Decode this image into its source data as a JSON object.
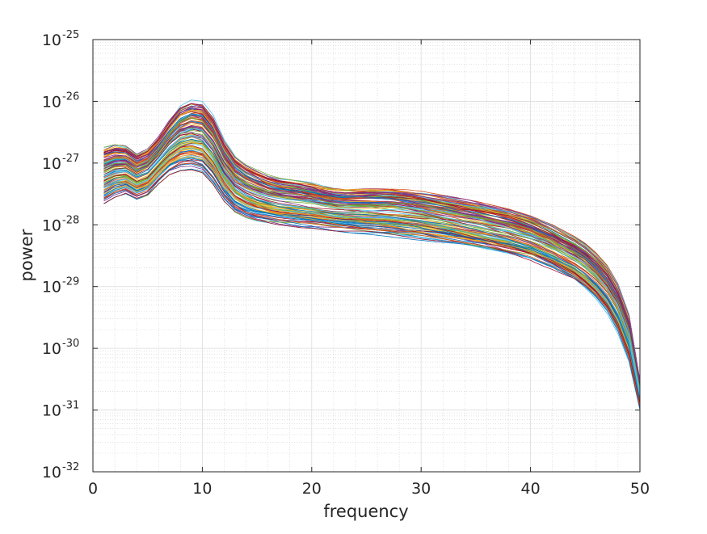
{
  "chart_data": {
    "type": "line",
    "title": "",
    "xlabel": "frequency",
    "ylabel": "power",
    "xlim": [
      0,
      50
    ],
    "ylim": [
      1e-32,
      1e-25
    ],
    "yscale": "log",
    "grid": true,
    "minor_grid": true,
    "legend": "none",
    "x_ticks": [
      {
        "value": 0,
        "label": "0"
      },
      {
        "value": 10,
        "label": "10"
      },
      {
        "value": 20,
        "label": "20"
      },
      {
        "value": 30,
        "label": "30"
      },
      {
        "value": 40,
        "label": "40"
      },
      {
        "value": 50,
        "label": "50"
      }
    ],
    "y_ticks": [
      {
        "value": 1e-25,
        "base": "10",
        "exp": "-25"
      },
      {
        "value": 1e-26,
        "base": "10",
        "exp": "-26"
      },
      {
        "value": 1e-27,
        "base": "10",
        "exp": "-27"
      },
      {
        "value": 1e-28,
        "base": "10",
        "exp": "-28"
      },
      {
        "value": 1e-29,
        "base": "10",
        "exp": "-29"
      },
      {
        "value": 1e-30,
        "base": "10",
        "exp": "-30"
      },
      {
        "value": 1e-31,
        "base": "10",
        "exp": "-31"
      },
      {
        "value": 1e-32,
        "base": "10",
        "exp": "-32"
      }
    ],
    "series_count": 120,
    "series_colors": [
      "#0072bd",
      "#d95319",
      "#edb120",
      "#7e2f8e",
      "#77ac30",
      "#4dbeee",
      "#a2142f"
    ],
    "envelope": {
      "x": [
        1,
        2,
        3,
        4,
        5,
        6,
        7,
        8,
        9,
        10,
        11,
        12,
        13,
        14,
        15,
        16,
        17,
        18,
        19,
        20,
        21,
        22,
        23,
        25,
        27,
        30,
        33,
        35,
        38,
        40,
        42,
        44,
        45,
        46,
        47,
        48,
        49,
        50
      ],
      "upper": [
        1.8e-27,
        2e-27,
        1.9e-27,
        1.4e-27,
        1.7e-27,
        2.7e-27,
        5e-27,
        8.5e-27,
        1.05e-26,
        1e-26,
        6e-27,
        2.4e-27,
        1.3e-27,
        9.5e-28,
        7.8e-28,
        6.5e-28,
        5.8e-28,
        5.5e-28,
        5.2e-28,
        4.8e-28,
        4.3e-28,
        4e-28,
        3.9e-28,
        3.95e-28,
        4e-28,
        3.5e-28,
        2.8e-28,
        2.4e-28,
        1.8e-28,
        1.4e-28,
        1e-28,
        6.5e-29,
        5e-29,
        3.5e-29,
        2.2e-29,
        1.1e-29,
        3.5e-30,
        3e-31
      ],
      "lower": [
        2.2e-28,
        2.8e-28,
        3.2e-28,
        2.6e-28,
        3e-28,
        4.6e-28,
        6.5e-28,
        7.5e-28,
        7.8e-28,
        7e-28,
        4.5e-28,
        2.4e-28,
        1.6e-28,
        1.3e-28,
        1.15e-28,
        1.08e-28,
        1e-28,
        9.5e-29,
        9e-29,
        8.8e-29,
        8.4e-29,
        8e-29,
        7.6e-29,
        7e-29,
        6.4e-29,
        5.6e-29,
        4.7e-29,
        4e-29,
        3.1e-29,
        2.5e-29,
        1.8e-29,
        1.2e-29,
        8.8e-30,
        6e-30,
        3.6e-30,
        1.7e-30,
        6e-31,
        1e-31
      ]
    }
  }
}
